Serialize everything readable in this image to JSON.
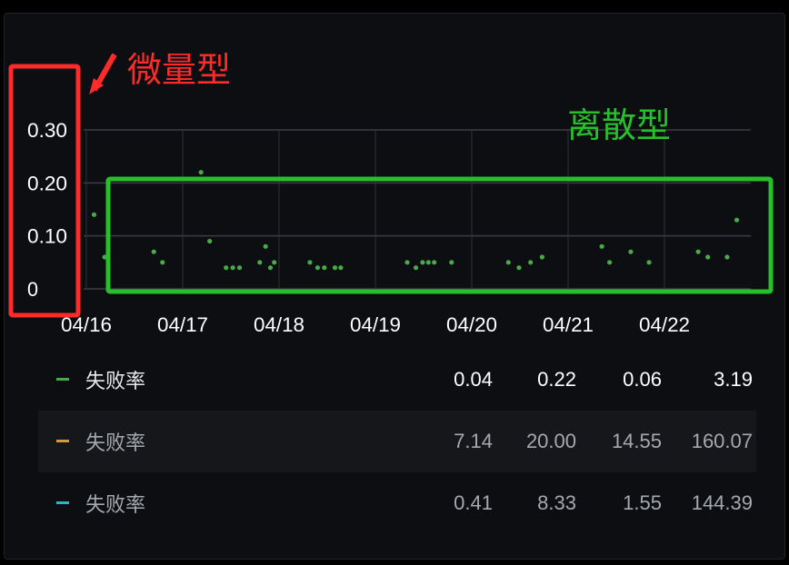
{
  "panel_background": "#0c0e12",
  "chart_data": {
    "type": "scatter",
    "title": "",
    "categories": [
      "04/16",
      "04/17",
      "04/18",
      "04/19",
      "04/20",
      "04/21",
      "04/22"
    ],
    "yticks": [
      "0.30",
      "0.20",
      "0.10",
      "0"
    ],
    "ylim": [
      0,
      0.3
    ],
    "xlim": [
      0,
      6.7
    ],
    "grid": true,
    "series": [
      {
        "color": "#4aa94a",
        "points": [
          {
            "x": 0.08,
            "y": 0.14
          },
          {
            "x": 0.19,
            "y": 0.06
          },
          {
            "x": 0.7,
            "y": 0.07
          },
          {
            "x": 0.79,
            "y": 0.05
          },
          {
            "x": 1.19,
            "y": 0.22
          },
          {
            "x": 1.28,
            "y": 0.09
          },
          {
            "x": 1.45,
            "y": 0.04
          },
          {
            "x": 1.52,
            "y": 0.04
          },
          {
            "x": 1.59,
            "y": 0.04
          },
          {
            "x": 1.8,
            "y": 0.05
          },
          {
            "x": 1.86,
            "y": 0.08
          },
          {
            "x": 1.91,
            "y": 0.04
          },
          {
            "x": 1.95,
            "y": 0.05
          },
          {
            "x": 2.32,
            "y": 0.05
          },
          {
            "x": 2.4,
            "y": 0.04
          },
          {
            "x": 2.47,
            "y": 0.04
          },
          {
            "x": 2.58,
            "y": 0.04
          },
          {
            "x": 2.64,
            "y": 0.04
          },
          {
            "x": 3.33,
            "y": 0.05
          },
          {
            "x": 3.42,
            "y": 0.04
          },
          {
            "x": 3.49,
            "y": 0.05
          },
          {
            "x": 3.55,
            "y": 0.05
          },
          {
            "x": 3.61,
            "y": 0.05
          },
          {
            "x": 3.79,
            "y": 0.05
          },
          {
            "x": 4.38,
            "y": 0.05
          },
          {
            "x": 4.49,
            "y": 0.04
          },
          {
            "x": 4.61,
            "y": 0.05
          },
          {
            "x": 4.73,
            "y": 0.06
          },
          {
            "x": 5.35,
            "y": 0.08
          },
          {
            "x": 5.43,
            "y": 0.05
          },
          {
            "x": 5.65,
            "y": 0.07
          },
          {
            "x": 5.84,
            "y": 0.05
          },
          {
            "x": 6.35,
            "y": 0.07
          },
          {
            "x": 6.45,
            "y": 0.06
          },
          {
            "x": 6.65,
            "y": 0.06
          },
          {
            "x": 6.75,
            "y": 0.13
          }
        ]
      }
    ]
  },
  "annotations": {
    "micro": {
      "label": "微量型",
      "color": "#ff2a2a"
    },
    "discrete": {
      "label": "离散型",
      "color": "#27c02a"
    }
  },
  "legend": [
    {
      "label": "失败率",
      "color": "#4aa94a",
      "values": [
        "0.04",
        "0.22",
        "0.06",
        "3.19"
      ],
      "dim": false
    },
    {
      "label": "失败率",
      "color": "#d29a3a",
      "values": [
        "7.14",
        "20.00",
        "14.55",
        "160.07"
      ],
      "dim": true
    },
    {
      "label": "失败率",
      "color": "#2bb8c4",
      "values": [
        "0.41",
        "8.33",
        "1.55",
        "144.39"
      ],
      "dim": true
    }
  ]
}
